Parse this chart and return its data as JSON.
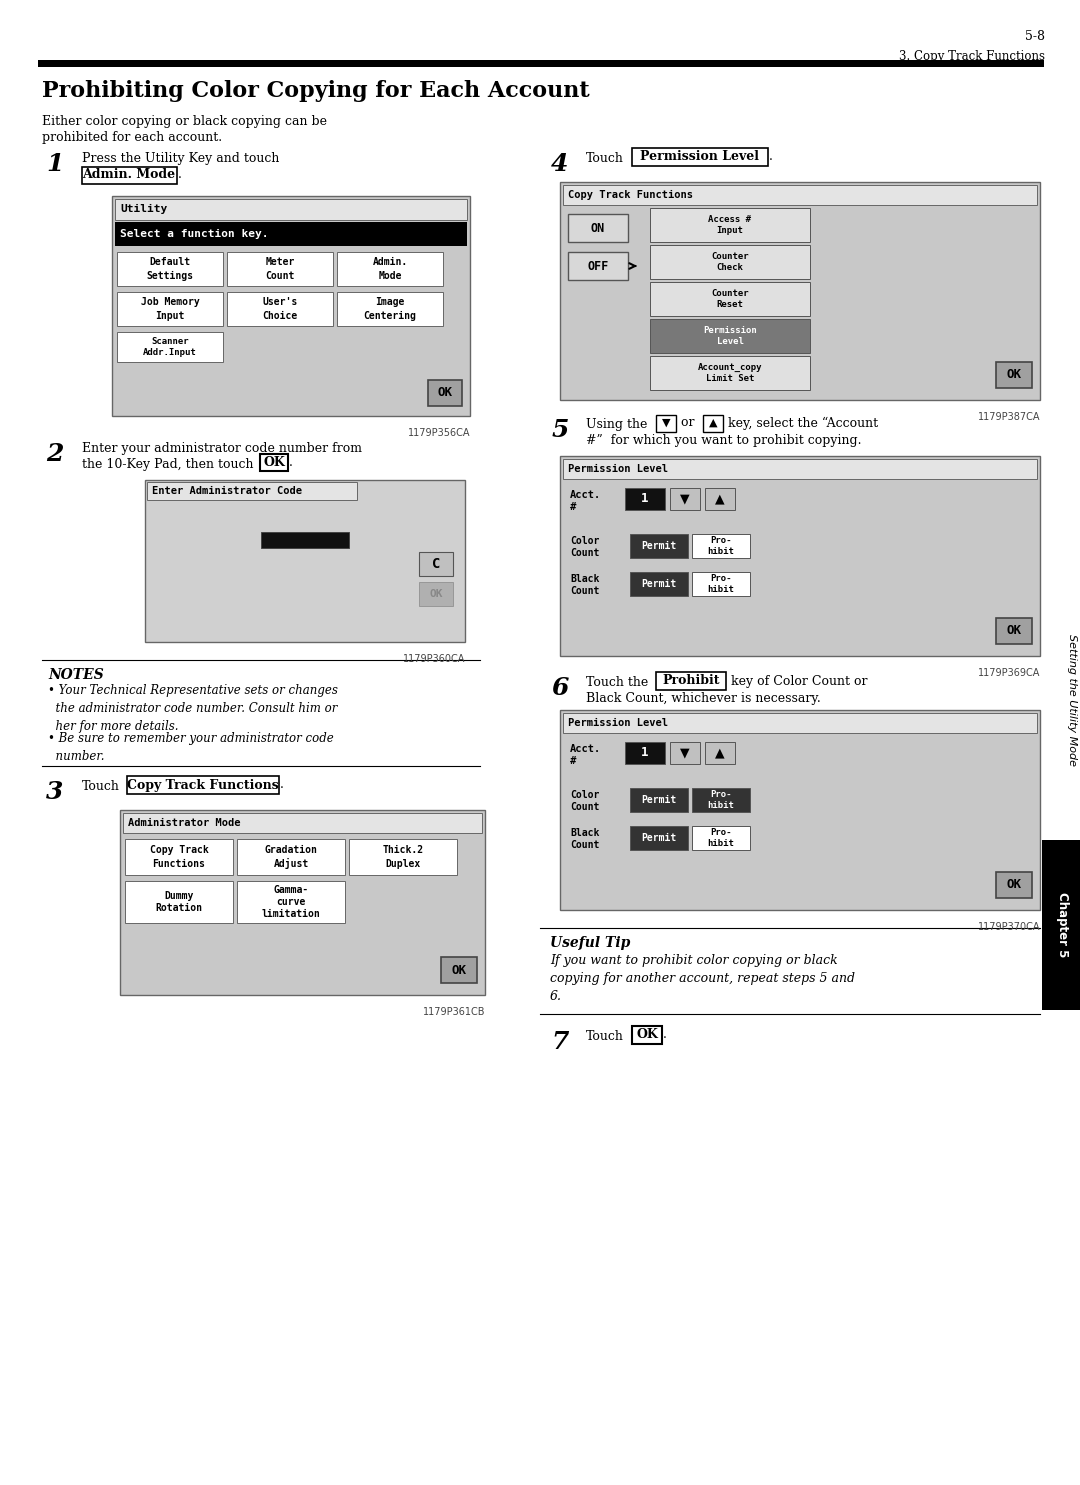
{
  "page_num": "5-8",
  "chapter_header": "3. Copy Track Functions",
  "title": "Prohibiting Color Copying for Each Account",
  "bg_color": "#ffffff"
}
